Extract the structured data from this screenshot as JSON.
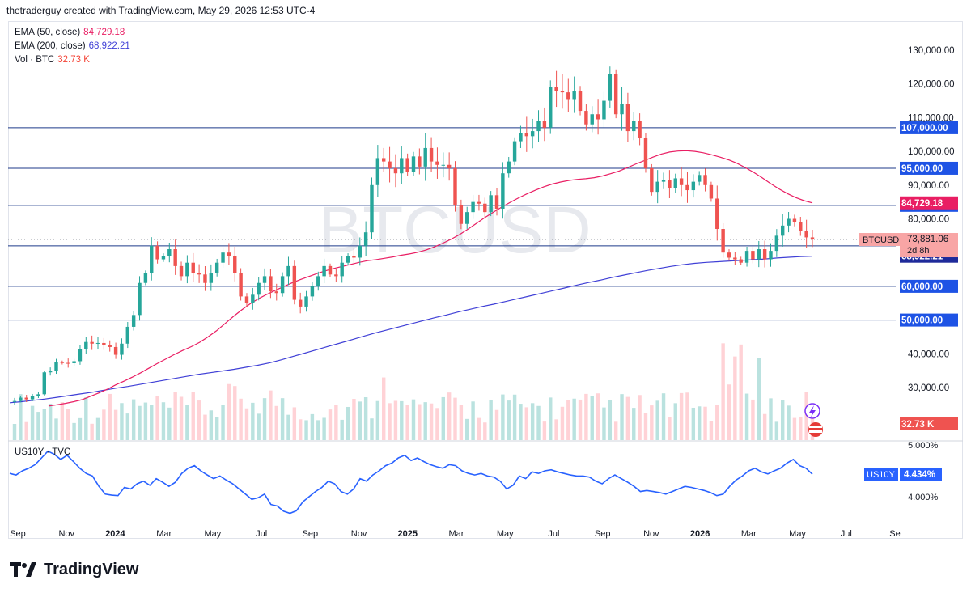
{
  "header": {
    "credit": "thetraderguy created with TradingView.com, May 29, 2026 12:53 UTC-4"
  },
  "legend": [
    {
      "label": "EMA (50, close)",
      "value": "84,729.18",
      "color": "#e91e63"
    },
    {
      "label": "EMA (200, close)",
      "value": "68,922.21",
      "color": "#3f3fd6"
    },
    {
      "label": "Vol · BTC",
      "value": "32.73 K",
      "color": "#f44336"
    }
  ],
  "watermark": "BTCUSD",
  "footer": {
    "brand": "TradingView"
  },
  "colors": {
    "up": "#26a69a",
    "down": "#ef5350",
    "ema50": "#e91e63",
    "ema200": "#3f3fd6",
    "hline": "#1e3a8a",
    "us10y": "#2962ff",
    "label_blue": "#1e53e5"
  },
  "chart_data": [
    {
      "type": "candlestick",
      "symbol": "BTCUSD",
      "timeframe": "weekly",
      "x_tick_labels": [
        "Sep",
        "Nov",
        "2024",
        "Mar",
        "May",
        "Jul",
        "Sep",
        "Nov",
        "2025",
        "Mar",
        "May",
        "Jul",
        "Sep",
        "Nov",
        "2026",
        "Mar",
        "May",
        "Jul",
        "Se"
      ],
      "y_tick_labels": [
        "130,000.00",
        "120,000.00",
        "110,000.00",
        "100,000.00",
        "90,000.00",
        "80,000.00",
        "40,000.00",
        "30,000.00"
      ],
      "ylim": [
        23000,
        133000
      ],
      "horizontal_levels": [
        {
          "value": 107000,
          "label": "107,000.00"
        },
        {
          "value": 95000,
          "label": "95,000.00"
        },
        {
          "value": 84000,
          "label": "84,000.00"
        },
        {
          "value": 72000,
          "label": "72,000.00"
        },
        {
          "value": 60000,
          "label": "60,000.00"
        },
        {
          "value": 50000,
          "label": "50,000.00"
        }
      ],
      "price_labels": [
        {
          "text": "84,729.18",
          "kind": "ema50"
        },
        {
          "text": "68,922.21",
          "kind": "ema200"
        },
        {
          "text": "32.73 K",
          "kind": "volume"
        }
      ],
      "current": {
        "symbol": "BTCUSD",
        "price": "73,881.06",
        "countdown": "2d 8h",
        "value": 73881
      },
      "closes": [
        26000,
        27000,
        26500,
        27500,
        28000,
        34500,
        35000,
        37500,
        37300,
        37200,
        37800,
        41500,
        43500,
        43000,
        43200,
        42600,
        42000,
        39700,
        43000,
        48000,
        51500,
        61000,
        64000,
        72000,
        68000,
        69000,
        71000,
        66000,
        63000,
        67000,
        64000,
        63500,
        61000,
        64000,
        67000,
        70000,
        69000,
        64000,
        57000,
        55000,
        57500,
        61000,
        63000,
        58500,
        58000,
        63000,
        66000,
        56000,
        54000,
        57000,
        60000,
        63000,
        66000,
        63500,
        63000,
        67000,
        69000,
        68500,
        72000,
        76000,
        90000,
        98000,
        97000,
        95000,
        93500,
        98000,
        94000,
        98500,
        95500,
        101000,
        97000,
        96000,
        96000,
        95000,
        84000,
        78500,
        82000,
        85000,
        84500,
        82000,
        87000,
        83000,
        93500,
        97000,
        103000,
        105500,
        104500,
        106000,
        109000,
        107000,
        119000,
        118000,
        117500,
        115500,
        118000,
        112000,
        108000,
        111000,
        109500,
        115000,
        123000,
        111000,
        114000,
        106000,
        109000,
        104000,
        95000,
        88000,
        91000,
        91500,
        89000,
        92000,
        90000,
        88500,
        91000,
        93000,
        90000,
        86000,
        77000,
        70000,
        68500,
        68000,
        67000,
        70500,
        68000,
        71000,
        68000,
        70500,
        75000,
        78000,
        80000,
        79000,
        76500,
        74500,
        73881
      ],
      "ema50": [
        24500,
        24900,
        25300,
        25800,
        26400,
        27400,
        28400,
        29500,
        30800,
        31900,
        33100,
        34400,
        35800,
        37200,
        38500,
        39800,
        41000,
        42100,
        43400,
        45000,
        46800,
        48900,
        51000,
        53000,
        54800,
        56300,
        57600,
        58800,
        59900,
        61000,
        62000,
        62900,
        63800,
        64600,
        65300,
        65900,
        66500,
        67100,
        67600,
        67900,
        68300,
        68700,
        69200,
        69600,
        70100,
        70800,
        71700,
        72800,
        74000,
        75400,
        77000,
        78700,
        80400,
        82000,
        83500,
        84900,
        86200,
        87400,
        88500,
        89500,
        90300,
        90900,
        91400,
        91700,
        91900,
        92200,
        92700,
        93400,
        94200,
        95200,
        96300,
        97300,
        98300,
        99200,
        99800,
        100100,
        100200,
        100000,
        99600,
        99000,
        98300,
        97500,
        96500,
        95200,
        93800,
        92200,
        90500,
        88900,
        87500,
        86300,
        85400,
        84729
      ],
      "ema200": [
        25500,
        25800,
        26200,
        26600,
        27100,
        27600,
        28100,
        28600,
        29200,
        29800,
        30300,
        30900,
        31500,
        32100,
        32700,
        33300,
        33900,
        34400,
        34900,
        35400,
        36000,
        36600,
        37300,
        38200,
        39200,
        40200,
        41200,
        42200,
        43200,
        44200,
        45200,
        46200,
        47100,
        48000,
        48900,
        49800,
        50700,
        51500,
        52400,
        53200,
        54000,
        54700,
        55500,
        56300,
        57100,
        57900,
        58700,
        59500,
        60300,
        61100,
        61800,
        62600,
        63300,
        64000,
        64700,
        65300,
        65900,
        66400,
        66800,
        67100,
        67300,
        67500,
        67700,
        67900,
        68100,
        68400,
        68600,
        68800,
        68922
      ],
      "volume_bars": 135,
      "volume_max_label": "32.73 K"
    },
    {
      "type": "line",
      "symbol": "US10Y",
      "source": "TVC",
      "label": "US10Y · TVC",
      "y_tick_labels": [
        "5.000%",
        "4.000%"
      ],
      "ylim": [
        3.6,
        5.0
      ],
      "current": {
        "symbol": "US10Y",
        "value_label": "4.434%",
        "value": 4.434
      },
      "values": [
        4.45,
        4.42,
        4.5,
        4.55,
        4.62,
        4.75,
        4.88,
        4.82,
        4.72,
        4.8,
        4.68,
        4.55,
        4.45,
        4.4,
        4.2,
        4.05,
        4.03,
        4.02,
        4.18,
        4.15,
        4.25,
        4.3,
        4.22,
        4.35,
        4.28,
        4.2,
        4.28,
        4.45,
        4.55,
        4.6,
        4.5,
        4.42,
        4.35,
        4.4,
        4.32,
        4.25,
        4.15,
        4.05,
        3.95,
        3.98,
        4.05,
        3.85,
        3.82,
        3.72,
        3.68,
        3.73,
        3.9,
        4.0,
        4.1,
        4.18,
        4.3,
        4.25,
        4.1,
        4.05,
        4.15,
        4.35,
        4.3,
        4.42,
        4.5,
        4.6,
        4.65,
        4.75,
        4.8,
        4.7,
        4.75,
        4.68,
        4.62,
        4.58,
        4.55,
        4.62,
        4.6,
        4.5,
        4.45,
        4.42,
        4.45,
        4.4,
        4.38,
        4.3,
        4.15,
        4.22,
        4.4,
        4.35,
        4.48,
        4.45,
        4.5,
        4.52,
        4.48,
        4.45,
        4.42,
        4.4,
        4.4,
        4.38,
        4.3,
        4.25,
        4.35,
        4.42,
        4.35,
        4.28,
        4.2,
        4.1,
        4.12,
        4.1,
        4.08,
        4.05,
        4.1,
        4.15,
        4.2,
        4.18,
        4.15,
        4.12,
        4.08,
        4.02,
        4.05,
        4.2,
        4.32,
        4.4,
        4.5,
        4.55,
        4.48,
        4.44,
        4.5,
        4.55,
        4.65,
        4.72,
        4.6,
        4.55,
        4.434
      ]
    }
  ]
}
